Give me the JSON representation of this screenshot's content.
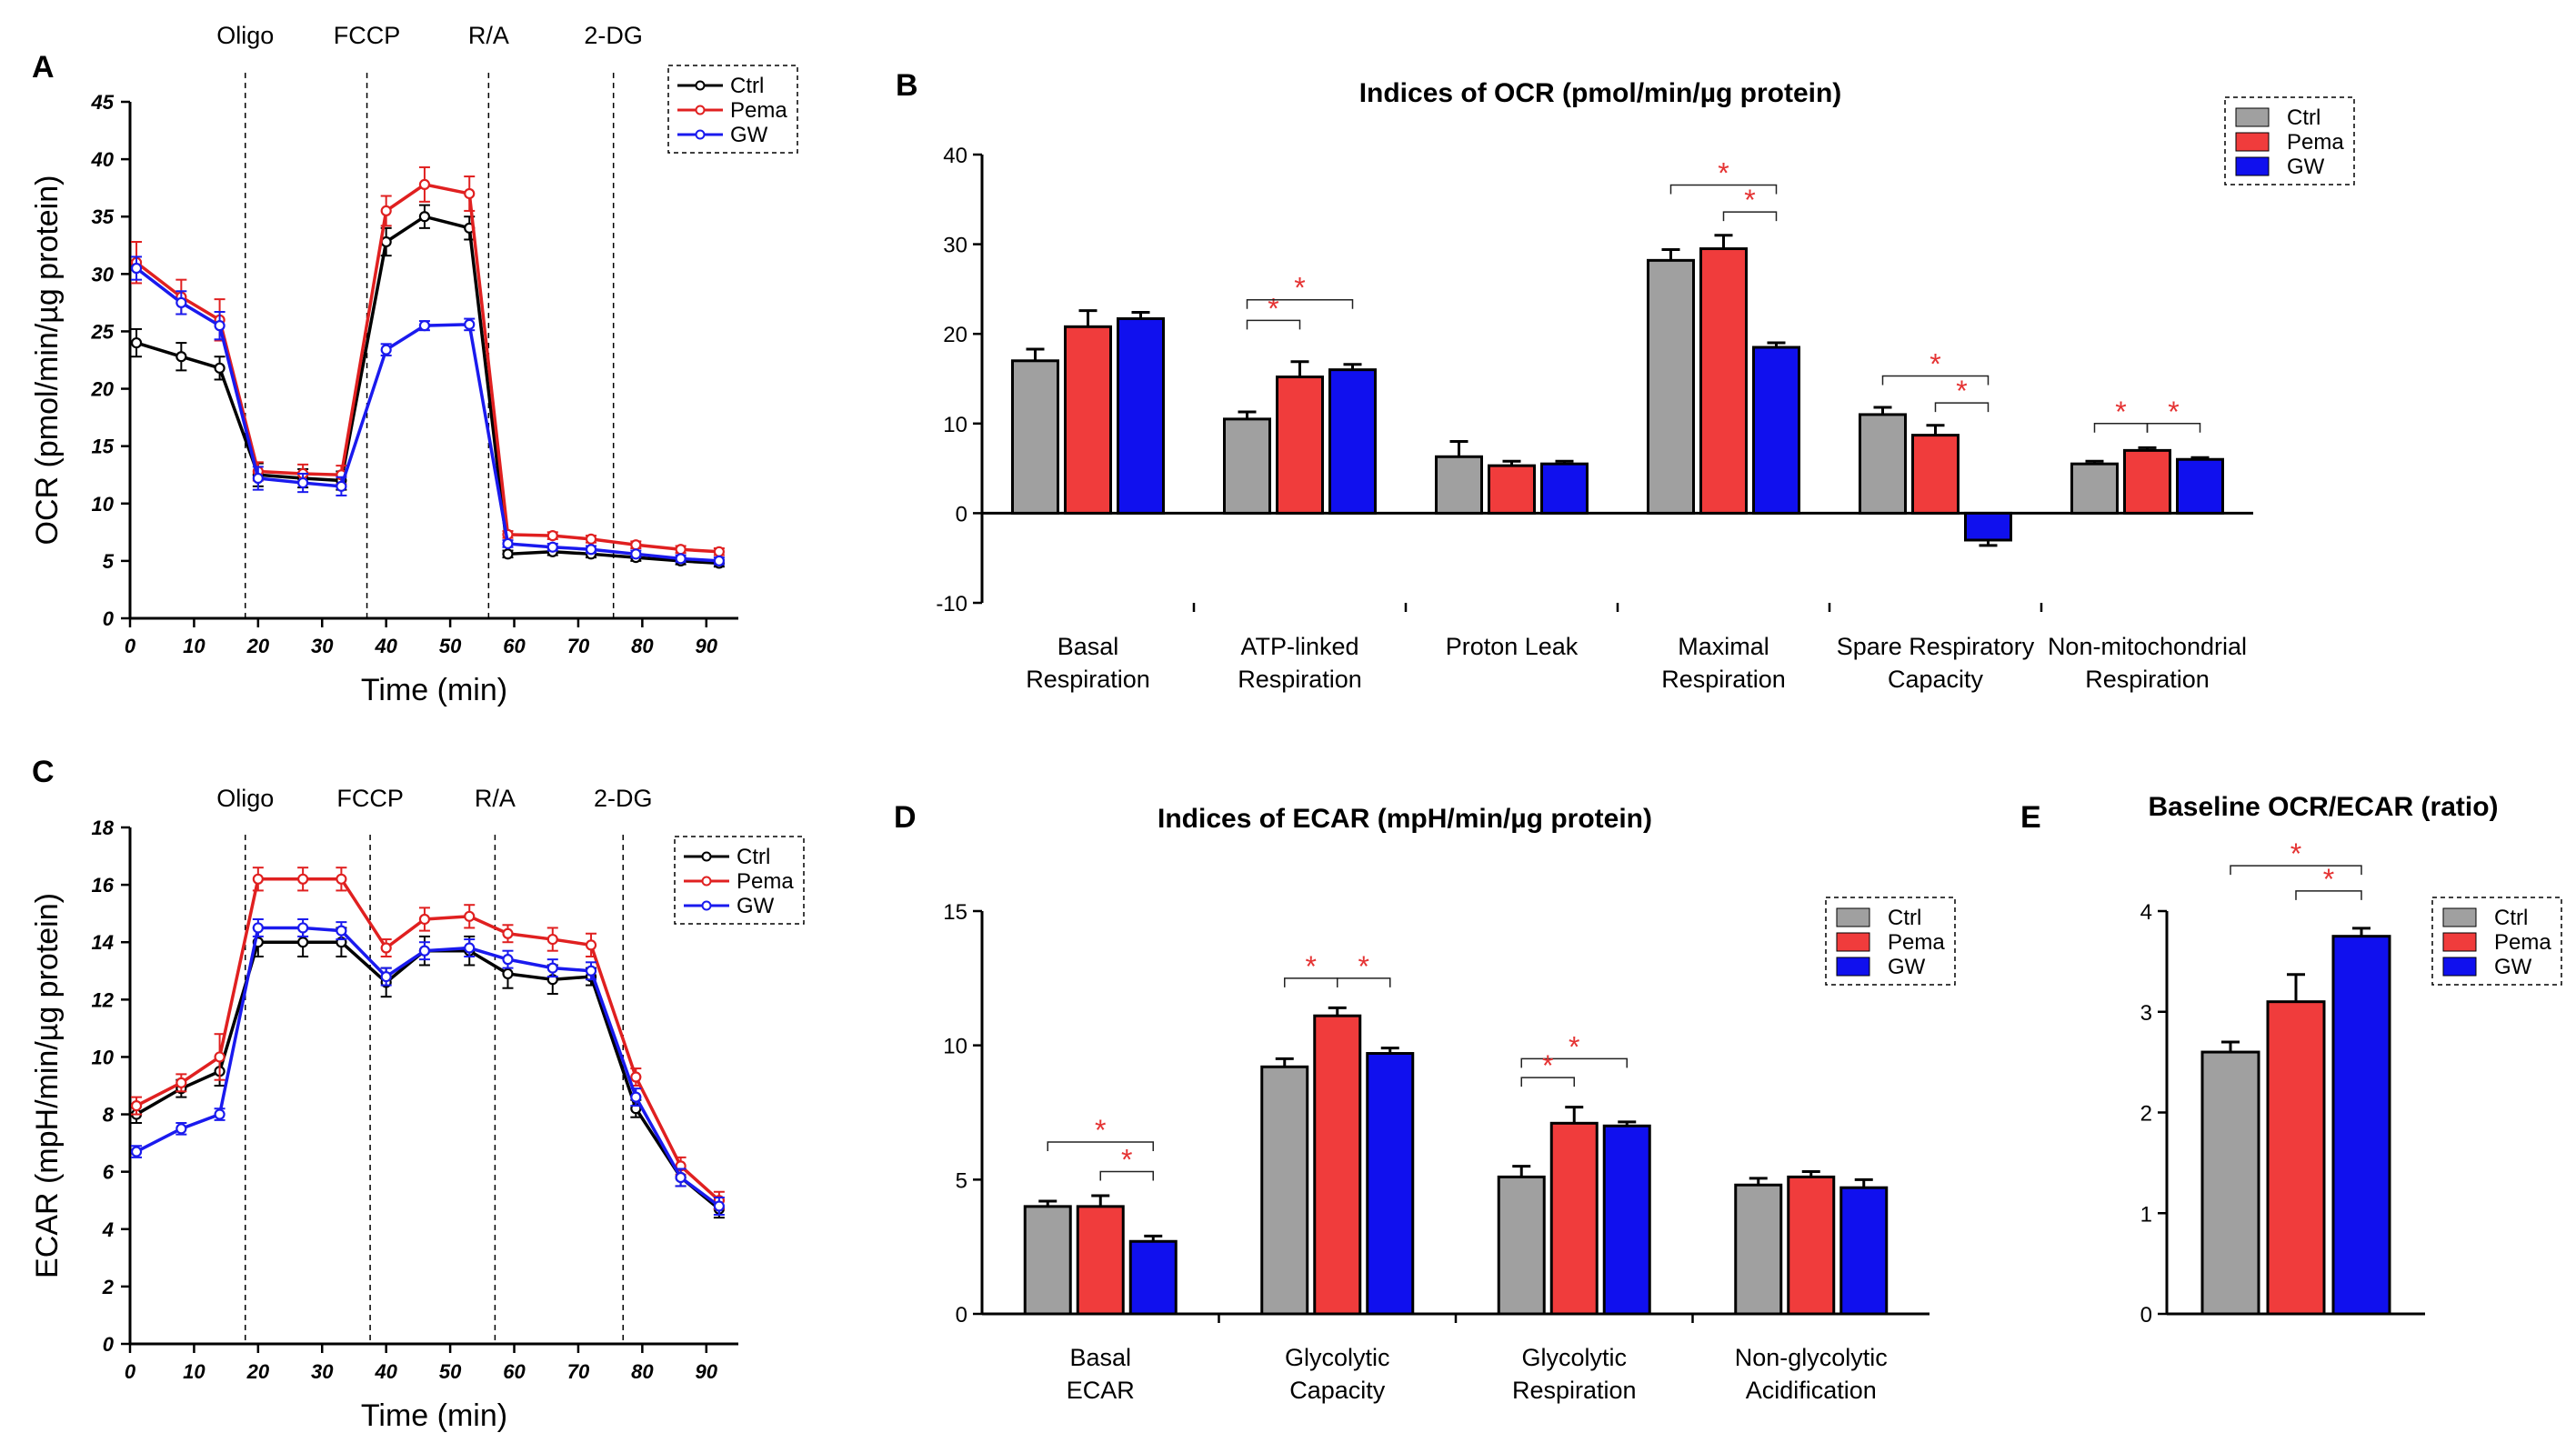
{
  "colors": {
    "Ctrl": "#a0a0a0",
    "Pema": "#f03c3c",
    "GW": "#1010ee",
    "line_Ctrl": "#000000",
    "line_Pema": "#e02020",
    "line_GW": "#1a1aee",
    "star": "#e53333"
  },
  "chart_data": [
    {
      "id": "A",
      "type": "line",
      "letter": "A",
      "ylabel": "OCR (pmol/min/µg protein)",
      "xlabel": "Time (min)",
      "ylim": [
        0,
        45
      ],
      "yticks": [
        0,
        5,
        10,
        15,
        20,
        25,
        30,
        35,
        40,
        45
      ],
      "xlim": [
        0,
        95
      ],
      "xticks": [
        0,
        10,
        20,
        30,
        40,
        50,
        60,
        70,
        80,
        90
      ],
      "injections": [
        {
          "label": "Oligo",
          "x": 18
        },
        {
          "label": "FCCP",
          "x": 37
        },
        {
          "label": "R/A",
          "x": 56
        },
        {
          "label": "2-DG",
          "x": 75.5
        }
      ],
      "x": [
        1,
        8,
        14,
        20,
        27,
        33,
        40,
        46,
        53,
        59,
        66,
        72,
        79,
        86,
        92
      ],
      "series": [
        {
          "name": "Ctrl",
          "values": [
            24,
            22.8,
            21.8,
            12.5,
            12.2,
            12.0,
            32.8,
            35.0,
            34.0,
            5.6,
            5.8,
            5.6,
            5.3,
            5.0,
            4.8
          ],
          "errors": [
            1.2,
            1.2,
            1.0,
            1.0,
            0.8,
            0.8,
            1.2,
            1.0,
            1.0,
            0.3,
            0.3,
            0.3,
            0.3,
            0.3,
            0.3
          ]
        },
        {
          "name": "Pema",
          "values": [
            31,
            28,
            26,
            12.8,
            12.6,
            12.5,
            35.5,
            37.8,
            37.0,
            7.3,
            7.2,
            6.9,
            6.4,
            6.0,
            5.8
          ],
          "errors": [
            1.8,
            1.5,
            1.8,
            0.8,
            0.8,
            0.8,
            1.3,
            1.5,
            1.5,
            0.3,
            0.3,
            0.3,
            0.3,
            0.3,
            0.3
          ]
        },
        {
          "name": "GW",
          "values": [
            30.5,
            27.5,
            25.5,
            12.2,
            11.8,
            11.5,
            23.4,
            25.5,
            25.6,
            6.5,
            6.2,
            6.0,
            5.6,
            5.2,
            5.0
          ],
          "errors": [
            1.0,
            1.0,
            1.2,
            1.0,
            0.8,
            0.8,
            0.5,
            0.4,
            0.5,
            0.3,
            0.3,
            0.3,
            0.3,
            0.3,
            0.3
          ]
        }
      ],
      "legend": [
        "Ctrl",
        "Pema",
        "GW"
      ]
    },
    {
      "id": "B",
      "type": "bar",
      "letter": "B",
      "title": "Indices of OCR (pmol/min/µg protein)",
      "ylim": [
        -10,
        40
      ],
      "yticks": [
        -10,
        0,
        10,
        20,
        30,
        40
      ],
      "categories": [
        [
          "Basal",
          "Respiration"
        ],
        [
          "ATP-linked",
          "Respiration"
        ],
        [
          "Proton Leak"
        ],
        [
          "Maximal",
          "Respiration"
        ],
        [
          "Spare Respiratory",
          "Capacity"
        ],
        [
          "Non-mitochondrial",
          "Respiration"
        ]
      ],
      "series": [
        {
          "name": "Ctrl",
          "values": [
            17.0,
            10.5,
            6.3,
            28.2,
            11.0,
            5.5
          ],
          "errors": [
            1.3,
            0.8,
            1.7,
            1.2,
            0.8,
            0.3
          ]
        },
        {
          "name": "Pema",
          "values": [
            20.8,
            15.2,
            5.3,
            29.5,
            8.7,
            7.0
          ],
          "errors": [
            1.8,
            1.7,
            0.5,
            1.5,
            1.1,
            0.3
          ]
        },
        {
          "name": "GW",
          "values": [
            21.7,
            16.0,
            5.5,
            18.5,
            -3.0,
            6.0
          ],
          "errors": [
            0.7,
            0.6,
            0.3,
            0.5,
            0.6,
            0.2
          ]
        }
      ],
      "significance": [
        {
          "cat": 1,
          "from": 0,
          "to": 1,
          "y": 21.5,
          "label": "*"
        },
        {
          "cat": 1,
          "from": 0,
          "to": 2,
          "y": 23.8,
          "label": "*"
        },
        {
          "cat": 3,
          "from": 0,
          "to": 2,
          "y": 36.6,
          "label": "*"
        },
        {
          "cat": 3,
          "from": 1,
          "to": 2,
          "y": 33.6,
          "label": "*"
        },
        {
          "cat": 4,
          "from": 0,
          "to": 2,
          "y": 15.3,
          "label": "*"
        },
        {
          "cat": 4,
          "from": 1,
          "to": 2,
          "y": 12.3,
          "label": "*"
        },
        {
          "cat": 5,
          "from": 0,
          "to": 1,
          "y": 10.0,
          "label": "*"
        },
        {
          "cat": 5,
          "from": 1,
          "to": 2,
          "y": 10.0,
          "label": "*"
        }
      ],
      "legend": [
        "Ctrl",
        "Pema",
        "GW"
      ]
    },
    {
      "id": "C",
      "type": "line",
      "letter": "C",
      "ylabel": "ECAR (mpH/min/µg protein)",
      "xlabel": "Time (min)",
      "ylim": [
        0,
        18
      ],
      "yticks": [
        0,
        2,
        4,
        6,
        8,
        10,
        12,
        14,
        16,
        18
      ],
      "xlim": [
        0,
        95
      ],
      "xticks": [
        0,
        10,
        20,
        30,
        40,
        50,
        60,
        70,
        80,
        90
      ],
      "injections": [
        {
          "label": "Oligo",
          "x": 18
        },
        {
          "label": "FCCP",
          "x": 37.5
        },
        {
          "label": "R/A",
          "x": 57
        },
        {
          "label": "2-DG",
          "x": 77
        }
      ],
      "x": [
        1,
        8,
        14,
        20,
        27,
        33,
        40,
        46,
        53,
        59,
        66,
        72,
        79,
        86,
        92
      ],
      "series": [
        {
          "name": "Ctrl",
          "values": [
            8.0,
            8.9,
            9.5,
            14.0,
            14.0,
            14.0,
            12.6,
            13.7,
            13.7,
            12.9,
            12.7,
            12.8,
            8.2,
            5.8,
            4.7
          ],
          "errors": [
            0.3,
            0.3,
            0.5,
            0.5,
            0.5,
            0.5,
            0.5,
            0.5,
            0.5,
            0.5,
            0.5,
            0.3,
            0.3,
            0.3,
            0.3
          ]
        },
        {
          "name": "Pema",
          "values": [
            8.3,
            9.1,
            10.0,
            16.2,
            16.2,
            16.2,
            13.8,
            14.8,
            14.9,
            14.3,
            14.1,
            13.9,
            9.3,
            6.2,
            5.0
          ],
          "errors": [
            0.3,
            0.3,
            0.8,
            0.4,
            0.4,
            0.4,
            0.3,
            0.4,
            0.4,
            0.3,
            0.4,
            0.4,
            0.3,
            0.3,
            0.3
          ]
        },
        {
          "name": "GW",
          "values": [
            6.7,
            7.5,
            8.0,
            14.5,
            14.5,
            14.4,
            12.8,
            13.7,
            13.8,
            13.4,
            13.1,
            13.0,
            8.6,
            5.8,
            4.8
          ],
          "errors": [
            0.2,
            0.2,
            0.2,
            0.3,
            0.3,
            0.3,
            0.3,
            0.3,
            0.3,
            0.3,
            0.3,
            0.3,
            0.3,
            0.3,
            0.3
          ]
        }
      ],
      "legend": [
        "Ctrl",
        "Pema",
        "GW"
      ]
    },
    {
      "id": "D",
      "type": "bar",
      "letter": "D",
      "title": "Indices of ECAR (mpH/min/µg protein)",
      "ylim": [
        0,
        15
      ],
      "yticks": [
        0,
        5,
        10,
        15
      ],
      "categories": [
        [
          "Basal",
          "ECAR"
        ],
        [
          "Glycolytic",
          "Capacity"
        ],
        [
          "Glycolytic",
          "Respiration"
        ],
        [
          "Non-glycolytic",
          "Acidification"
        ]
      ],
      "series": [
        {
          "name": "Ctrl",
          "values": [
            4.0,
            9.2,
            5.1,
            4.8
          ],
          "errors": [
            0.2,
            0.3,
            0.4,
            0.25
          ]
        },
        {
          "name": "Pema",
          "values": [
            4.0,
            11.1,
            7.1,
            5.1
          ],
          "errors": [
            0.4,
            0.3,
            0.6,
            0.2
          ]
        },
        {
          "name": "GW",
          "values": [
            2.7,
            9.7,
            7.0,
            4.7
          ],
          "errors": [
            0.2,
            0.2,
            0.15,
            0.3
          ]
        }
      ],
      "significance": [
        {
          "cat": 0,
          "from": 0,
          "to": 2,
          "y": 6.4,
          "label": "*"
        },
        {
          "cat": 0,
          "from": 1,
          "to": 2,
          "y": 5.3,
          "label": "*"
        },
        {
          "cat": 1,
          "from": 0,
          "to": 1,
          "y": 12.5,
          "label": "*"
        },
        {
          "cat": 1,
          "from": 1,
          "to": 2,
          "y": 12.5,
          "label": "*"
        },
        {
          "cat": 2,
          "from": 0,
          "to": 2,
          "y": 9.5,
          "label": "*"
        },
        {
          "cat": 2,
          "from": 0,
          "to": 1,
          "y": 8.8,
          "label": "*"
        }
      ],
      "legend": [
        "Ctrl",
        "Pema",
        "GW"
      ]
    },
    {
      "id": "E",
      "type": "bar",
      "letter": "E",
      "title": "Baseline OCR/ECAR (ratio)",
      "ylim": [
        0,
        4
      ],
      "yticks": [
        0,
        1,
        2,
        3,
        4
      ],
      "categories": [
        [
          ""
        ]
      ],
      "series": [
        {
          "name": "Ctrl",
          "values": [
            2.6
          ],
          "errors": [
            0.1
          ]
        },
        {
          "name": "Pema",
          "values": [
            3.1
          ],
          "errors": [
            0.27
          ]
        },
        {
          "name": "GW",
          "values": [
            3.75
          ],
          "errors": [
            0.08
          ]
        }
      ],
      "significance": [
        {
          "cat": 0,
          "from": 0,
          "to": 2,
          "y": 4.45,
          "label": "*"
        },
        {
          "cat": 0,
          "from": 1,
          "to": 2,
          "y": 4.2,
          "label": "*"
        }
      ],
      "legend": [
        "Ctrl",
        "Pema",
        "GW"
      ]
    }
  ]
}
